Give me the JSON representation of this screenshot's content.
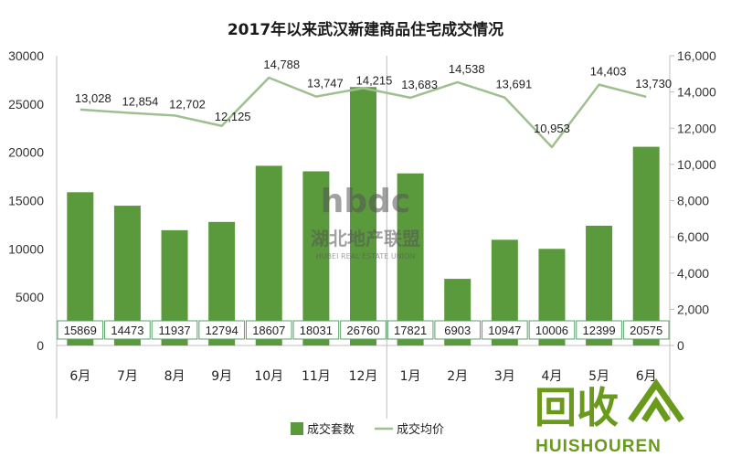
{
  "chart_data": {
    "type": "bar",
    "title": "2017年以来武汉新建商品住宅成交情况",
    "categories": [
      "6月",
      "7月",
      "8月",
      "9月",
      "10月",
      "11月",
      "12月",
      "1月",
      "2月",
      "3月",
      "4月",
      "5月",
      "6月"
    ],
    "series": [
      {
        "name": "成交套数",
        "type": "bar",
        "axis": "left",
        "color": "#5b9a3c",
        "values": [
          15869,
          14473,
          11937,
          12794,
          18607,
          18031,
          26760,
          17821,
          6903,
          10947,
          10006,
          12399,
          20575
        ]
      },
      {
        "name": "成交均价",
        "type": "line",
        "axis": "right",
        "color": "#9fbf90",
        "values": [
          13028,
          12854,
          12702,
          12125,
          14788,
          13747,
          14215,
          13683,
          14538,
          13691,
          10953,
          14403,
          13730
        ],
        "labels": [
          "13,028",
          "12,854",
          "12,702",
          "12,125",
          "14,788",
          "13,747",
          "14,215",
          "13,683",
          "14,538",
          "13,691",
          "10,953",
          "14,403",
          "13,730"
        ]
      }
    ],
    "left_axis": {
      "ylim": [
        0,
        30000
      ],
      "ticks": [
        "0",
        "5000",
        "10000",
        "15000",
        "20000",
        "25000",
        "30000"
      ]
    },
    "right_axis": {
      "ylim": [
        0,
        16000
      ],
      "ticks": [
        "0",
        "2,000",
        "4,000",
        "6,000",
        "8,000",
        "10,000",
        "12,000",
        "14,000",
        "16,000"
      ]
    },
    "legend_position": "bottom",
    "grid": false
  },
  "watermark": {
    "logo_text": "hbdc",
    "name": "湖北地产联盟",
    "subtitle": "HUBEI REAL ESTATE UNION"
  },
  "corner_logo": {
    "text": "回收",
    "domain": "HUISHOUREN"
  },
  "colors": {
    "bar": "#5b9a3c",
    "line": "#9fbf90",
    "label_border": "#5aa06a",
    "logo_green": "#6a9a1c"
  }
}
